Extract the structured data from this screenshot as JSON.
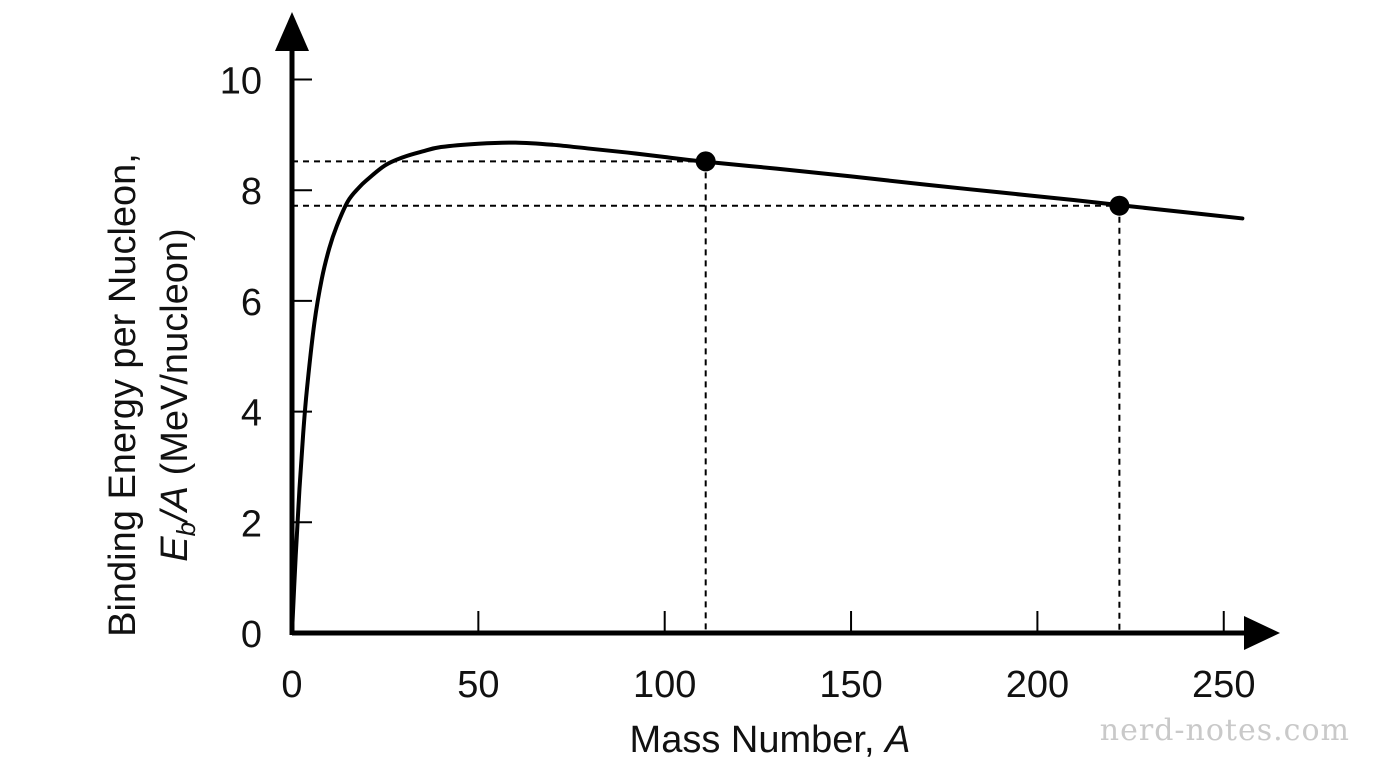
{
  "chart_data": {
    "type": "line",
    "xlabel": {
      "text": "Mass Number, ",
      "var": "A"
    },
    "ylabel": {
      "line1": "Binding Energy per Nucleon,",
      "var": "E",
      "sub": "b",
      "rest_var": "/A",
      "unit": " (MeV/nucleon)"
    },
    "xlim": [
      0,
      255
    ],
    "ylim": [
      0,
      10.5
    ],
    "x_ticks": [
      0,
      50,
      100,
      150,
      200,
      250
    ],
    "y_ticks": [
      0,
      2,
      4,
      6,
      8,
      10
    ],
    "grid": false,
    "series": [
      {
        "x": [
          0,
          1,
          2,
          3,
          4,
          6,
          8,
          10,
          12,
          15,
          18,
          20,
          25,
          30,
          35,
          40,
          50,
          60,
          70,
          80,
          90,
          100,
          110,
          130,
          150,
          170,
          190,
          210,
          222,
          240,
          255
        ],
        "y": [
          0,
          1.4,
          2.6,
          3.6,
          4.4,
          5.6,
          6.4,
          6.95,
          7.35,
          7.8,
          8.05,
          8.18,
          8.45,
          8.6,
          8.7,
          8.78,
          8.84,
          8.86,
          8.82,
          8.75,
          8.68,
          8.6,
          8.52,
          8.39,
          8.25,
          8.1,
          7.96,
          7.82,
          7.73,
          7.6,
          7.49
        ]
      }
    ],
    "points": [
      {
        "x": 111,
        "y": 8.52
      },
      {
        "x": 222,
        "y": 7.72
      }
    ]
  },
  "watermark": "nerd-notes.com"
}
